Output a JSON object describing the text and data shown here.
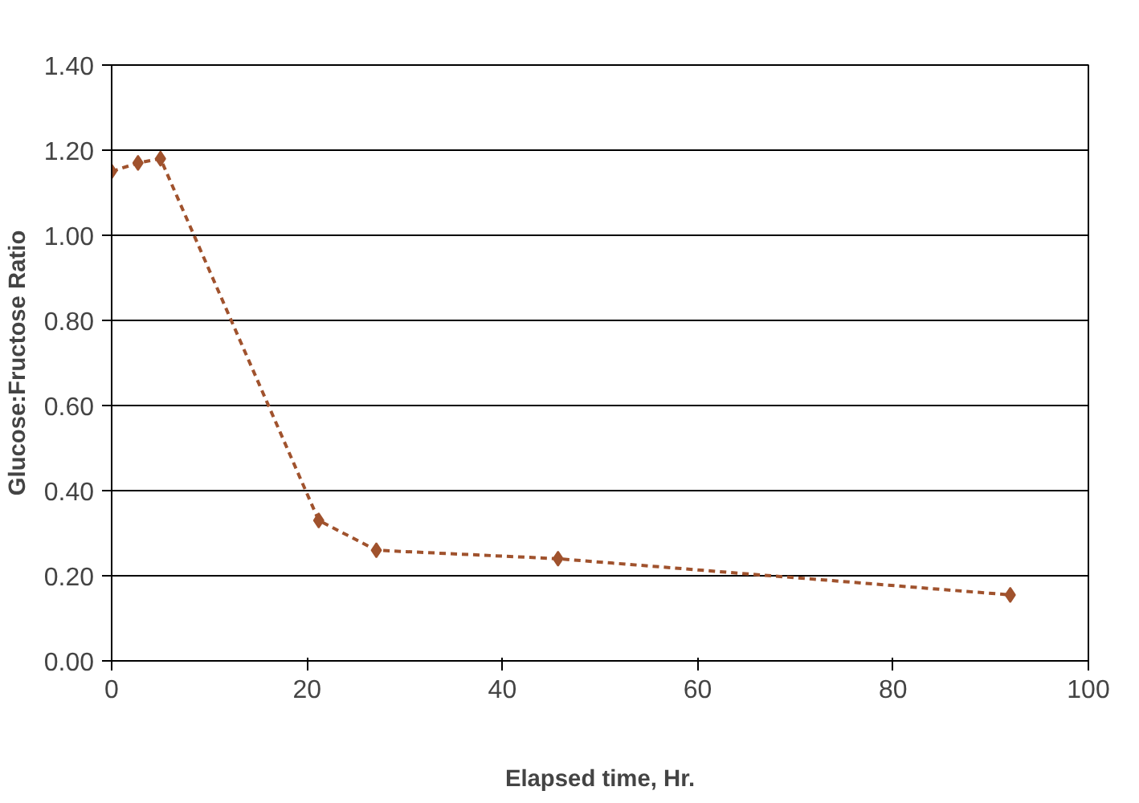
{
  "chart_data": {
    "type": "line",
    "xlabel": "Elapsed time, Hr.",
    "ylabel": "Glucose:Fructose Ratio",
    "x": [
      0,
      2.7,
      5,
      21.2,
      27.1,
      45.7,
      92
    ],
    "series": [
      {
        "color": "#a0522d",
        "values": [
          1.15,
          1.17,
          1.18,
          0.33,
          0.26,
          0.24,
          0.155
        ]
      }
    ],
    "xlim": [
      0,
      100
    ],
    "xticks": [
      0,
      20,
      40,
      60,
      80,
      100
    ],
    "ylim": [
      0,
      1.4
    ],
    "yticks": [
      {
        "value": 0,
        "label": "0.00"
      },
      {
        "value": 0.2,
        "label": "0.20"
      },
      {
        "value": 0.4,
        "label": "0.40"
      },
      {
        "value": 0.6,
        "label": "0.60"
      },
      {
        "value": 0.8,
        "label": "0.80"
      },
      {
        "value": 1.0,
        "label": "1.00"
      },
      {
        "value": 1.2,
        "label": "1.20"
      },
      {
        "value": 1.4,
        "label": "1.40"
      }
    ],
    "grid": "y",
    "marker": "diamond",
    "line_style": "dashed"
  }
}
